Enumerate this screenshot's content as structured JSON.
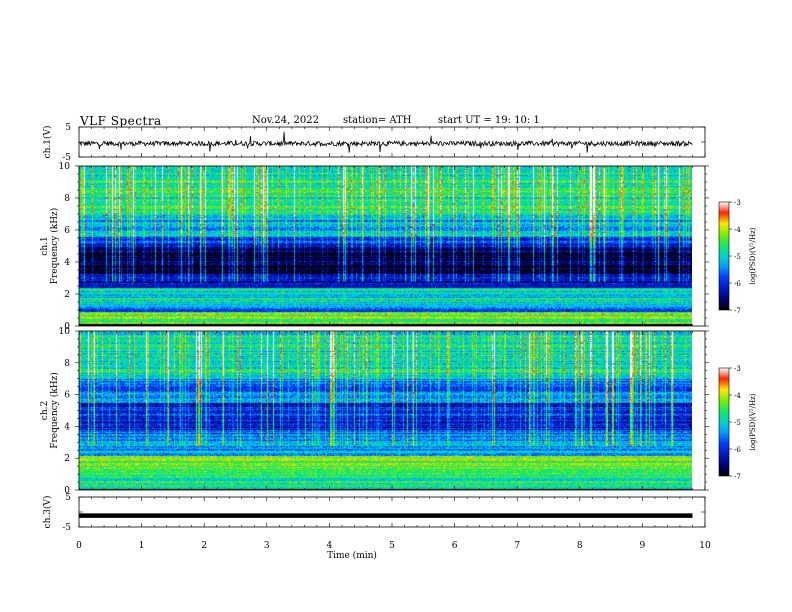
{
  "header": {
    "title": "VLF  Spectra",
    "date": "Nov.24, 2022",
    "station": "station= ATH",
    "start": "start  UT  =    19: 10: 1"
  },
  "chart_data": [
    {
      "type": "line",
      "name": "ch1-waveform",
      "ylabel": "ch.1(V)",
      "ylim": [
        -5,
        5
      ],
      "yticks": [
        "5",
        "-5"
      ],
      "xlim": [
        0,
        10
      ],
      "baseline": -0.5,
      "x_data_end": 9.8
    },
    {
      "type": "heatmap",
      "name": "ch1-spectrogram",
      "ylabel": [
        "ch.1",
        "Frequency  (kHz)"
      ],
      "ylim": [
        0,
        10
      ],
      "yticks": [
        "0",
        "2",
        "4",
        "6",
        "8",
        "10"
      ],
      "xlim": [
        0,
        10
      ],
      "x_data_end": 9.8,
      "colorbar": {
        "label": "log(PSD)(V²/Hz)",
        "range": [
          -7,
          -3
        ],
        "ticks": [
          "-3",
          "-4",
          "-5",
          "-6",
          "-7"
        ]
      },
      "bands": [
        {
          "f": [
            0.0,
            0.15
          ],
          "v": -7.0
        },
        {
          "f": [
            0.15,
            0.9
          ],
          "v": -4.3
        },
        {
          "f": [
            0.9,
            1.3
          ],
          "v": -5.7
        },
        {
          "f": [
            1.3,
            2.0
          ],
          "v": -5.0
        },
        {
          "f": [
            2.0,
            2.4
          ],
          "v": -4.9
        },
        {
          "f": [
            2.4,
            3.3
          ],
          "v": -6.2
        },
        {
          "f": [
            3.3,
            5.0
          ],
          "v": -6.9
        },
        {
          "f": [
            5.0,
            5.6
          ],
          "v": -6.0
        },
        {
          "f": [
            5.6,
            7.0
          ],
          "v": -5.3
        },
        {
          "f": [
            7.0,
            10.0
          ],
          "v": -4.8
        }
      ]
    },
    {
      "type": "heatmap",
      "name": "ch2-spectrogram",
      "ylabel": [
        "ch.2",
        "Frequency  (kHz)"
      ],
      "ylim": [
        0,
        10
      ],
      "yticks": [
        "0",
        "2",
        "4",
        "6",
        "8",
        "10"
      ],
      "xlim": [
        0,
        10
      ],
      "x_data_end": 9.8,
      "colorbar": {
        "label": "log(PSD)(V²/Hz)",
        "range": [
          -7,
          -3
        ],
        "ticks": [
          "-3",
          "-4",
          "-5",
          "-6",
          "-7"
        ]
      },
      "bands": [
        {
          "f": [
            0.0,
            0.1
          ],
          "v": -7.0
        },
        {
          "f": [
            0.1,
            1.0
          ],
          "v": -4.8
        },
        {
          "f": [
            1.0,
            2.2
          ],
          "v": -4.4
        },
        {
          "f": [
            2.2,
            3.0
          ],
          "v": -5.3
        },
        {
          "f": [
            3.0,
            3.8
          ],
          "v": -5.6
        },
        {
          "f": [
            3.8,
            5.5
          ],
          "v": -6.1
        },
        {
          "f": [
            5.5,
            7.0
          ],
          "v": -5.6
        },
        {
          "f": [
            7.0,
            10.0
          ],
          "v": -4.9
        }
      ]
    },
    {
      "type": "line",
      "name": "ch3-waveform",
      "ylabel": "ch.3(V)",
      "ylim": [
        -5,
        5
      ],
      "yticks": [
        "5",
        "-5"
      ],
      "xlim": [
        0,
        10
      ],
      "baseline": -1.2,
      "x_data_end": 9.8
    }
  ],
  "x_axis": {
    "label": "Time  (min)",
    "ticks": [
      "0",
      "1",
      "2",
      "3",
      "4",
      "5",
      "6",
      "7",
      "8",
      "9",
      "10"
    ]
  }
}
